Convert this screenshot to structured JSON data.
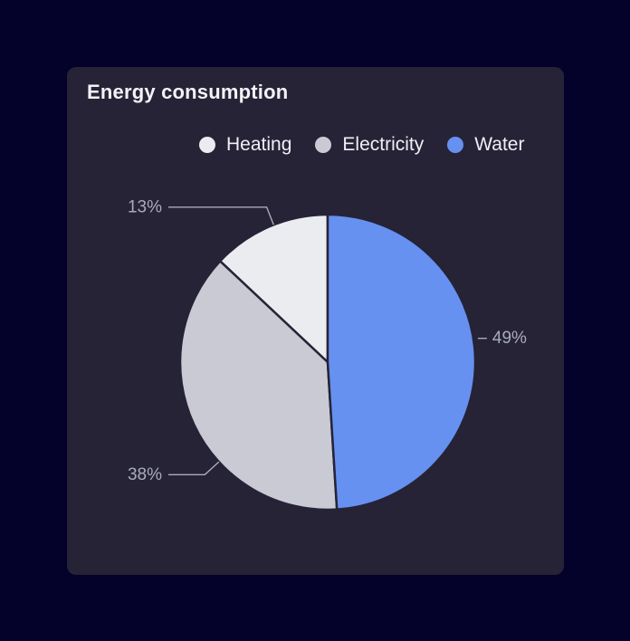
{
  "card": {
    "title": "Energy consumption"
  },
  "chart_data": {
    "type": "pie",
    "title": "Energy consumption",
    "legend_position": "top",
    "start_angle": "12-oclock",
    "direction": "counterclockwise",
    "slices": [
      {
        "label": "Heating",
        "value": 13,
        "display": "13%",
        "color": "#EBECF0"
      },
      {
        "label": "Electricity",
        "value": 38,
        "display": "38%",
        "color": "#C9CAD4"
      },
      {
        "label": "Water",
        "value": 49,
        "display": "49%",
        "color": "#6691F0"
      }
    ]
  },
  "colors": {
    "page_background": "#04012A",
    "card_background": "#262337",
    "title_text": "#F2F3F6",
    "legend_text": "#EEF0F4",
    "percent_label": "#A9ABBA",
    "leader_line": "#A9ABBA",
    "slice_border": "#262337"
  }
}
